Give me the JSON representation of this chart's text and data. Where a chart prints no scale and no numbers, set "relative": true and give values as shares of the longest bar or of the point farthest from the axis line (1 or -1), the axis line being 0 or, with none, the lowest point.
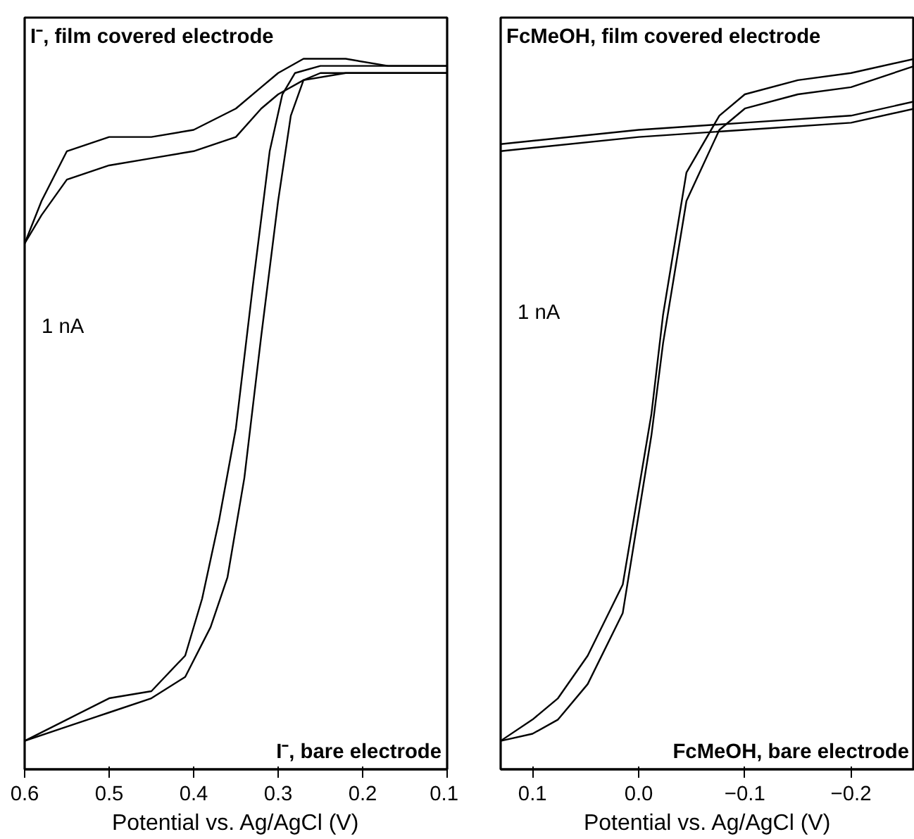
{
  "chart_data": [
    {
      "type": "line",
      "xlabel": "Potential vs. Ag/AgCl (V)",
      "relative": true,
      "tick_labels": "x",
      "grid": false,
      "marker": "none",
      "line_style": "solid",
      "xlim": [
        0.6,
        0.1
      ],
      "xticks": [
        0.6,
        0.5,
        0.4,
        0.3,
        0.2,
        0.1
      ],
      "annotations": [
        "I⁻, film covered electrode",
        "I⁻, bare electrode",
        "1 nA"
      ],
      "series": [
        {
          "color": "#000000",
          "x": [
            0.6,
            0.58,
            0.55,
            0.5,
            0.45,
            0.4,
            0.35,
            0.32,
            0.3,
            0.27,
            0.22,
            0.17,
            0.1
          ],
          "values": [
            0.74,
            0.8,
            0.87,
            0.89,
            0.89,
            0.9,
            0.93,
            0.96,
            0.98,
            1.0,
            1.0,
            0.99,
            0.99
          ]
        },
        {
          "color": "#000000",
          "x": [
            0.1,
            0.17,
            0.22,
            0.27,
            0.3,
            0.32,
            0.35,
            0.4,
            0.45,
            0.5,
            0.55,
            0.58,
            0.6
          ],
          "values": [
            0.98,
            0.98,
            0.98,
            0.97,
            0.95,
            0.93,
            0.89,
            0.87,
            0.86,
            0.85,
            0.83,
            0.78,
            0.74
          ]
        },
        {
          "color": "#000000",
          "x": [
            0.6,
            0.55,
            0.5,
            0.45,
            0.41,
            0.39,
            0.37,
            0.35,
            0.33,
            0.31,
            0.295,
            0.28,
            0.25,
            0.2,
            0.1
          ],
          "values": [
            0.04,
            0.07,
            0.1,
            0.11,
            0.16,
            0.24,
            0.35,
            0.48,
            0.68,
            0.87,
            0.95,
            0.98,
            0.99,
            0.99,
            0.99
          ]
        },
        {
          "color": "#000000",
          "x": [
            0.1,
            0.2,
            0.25,
            0.27,
            0.285,
            0.3,
            0.32,
            0.34,
            0.36,
            0.38,
            0.41,
            0.45,
            0.5,
            0.55,
            0.6
          ],
          "values": [
            0.98,
            0.98,
            0.98,
            0.97,
            0.92,
            0.8,
            0.61,
            0.41,
            0.27,
            0.2,
            0.13,
            0.1,
            0.08,
            0.06,
            0.04
          ]
        }
      ]
    },
    {
      "type": "line",
      "xlabel": "Potential vs. Ag/AgCl (V)",
      "relative": true,
      "tick_labels": "x",
      "grid": false,
      "marker": "none",
      "line_style": "solid",
      "xlim": [
        0.13,
        -0.26
      ],
      "xticks": [
        0.1,
        {
          "value": 0,
          "label": "0.0"
        },
        -0.1,
        -0.2
      ],
      "annotations": [
        "FcMeOH, film covered electrode",
        "FcMeOH, bare electrode",
        "1 nA"
      ],
      "series": [
        {
          "color": "#000000",
          "x": [
            0.13,
            0.0,
            -0.1,
            -0.2,
            -0.26
          ],
          "values": [
            0.88,
            0.9,
            0.91,
            0.92,
            0.94
          ]
        },
        {
          "color": "#000000",
          "x": [
            -0.26,
            -0.2,
            -0.1,
            0.0,
            0.13
          ],
          "values": [
            0.93,
            0.91,
            0.9,
            0.89,
            0.87
          ]
        },
        {
          "color": "#000000",
          "x": [
            0.13,
            0.1,
            0.076,
            0.048,
            0.015,
            -0.012,
            -0.023,
            -0.045,
            -0.076,
            -0.1,
            -0.15,
            -0.2,
            -0.26
          ],
          "values": [
            0.04,
            0.07,
            0.1,
            0.16,
            0.26,
            0.5,
            0.64,
            0.84,
            0.92,
            0.95,
            0.97,
            0.98,
            1.0
          ]
        },
        {
          "color": "#000000",
          "x": [
            -0.26,
            -0.2,
            -0.15,
            -0.1,
            -0.076,
            -0.045,
            -0.023,
            -0.012,
            0.015,
            0.048,
            0.076,
            0.1,
            0.13
          ],
          "values": [
            0.99,
            0.96,
            0.95,
            0.93,
            0.9,
            0.8,
            0.6,
            0.47,
            0.22,
            0.12,
            0.07,
            0.05,
            0.04
          ]
        }
      ]
    }
  ]
}
